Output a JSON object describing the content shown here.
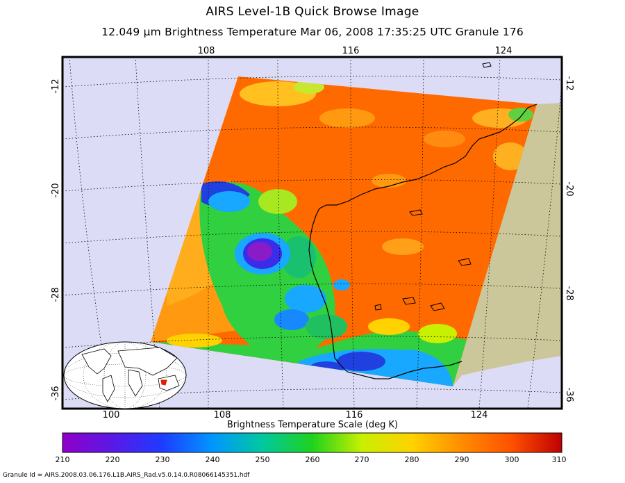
{
  "header": {
    "title": "AIRS Level-1B Quick Browse Image",
    "subtitle": "12.049 µm Brightness Temperature   Mar 06, 2008 17:35:25 UTC  Granule 176"
  },
  "map": {
    "lon_top_labels": [
      "108",
      "116",
      "124"
    ],
    "lon_bottom_labels": [
      "100",
      "108",
      "116",
      "124"
    ],
    "lat_left_labels": [
      "-12",
      "-20",
      "-28",
      "-36"
    ],
    "lat_right_labels": [
      "-12",
      "-20",
      "-28",
      "-36"
    ],
    "colors": {
      "ocean": "#dcdcf6",
      "land": "#cbc79a",
      "graticule": "#000000"
    }
  },
  "colorbar": {
    "title": "Brightness Temperature Scale (deg K)",
    "ticks": [
      "210",
      "220",
      "230",
      "240",
      "250",
      "260",
      "270",
      "280",
      "290",
      "300",
      "310"
    ],
    "range": [
      210,
      310
    ],
    "colors": [
      "#9000c8",
      "#5a18e6",
      "#1e3cff",
      "#0096ff",
      "#00c8a0",
      "#1ed21e",
      "#c8f000",
      "#ffd200",
      "#ff8c00",
      "#ff5000",
      "#be0000"
    ]
  },
  "footer": {
    "granule_id": "Granule Id = AIRS.2008.03.06.176.L1B.AIRS_Rad.v5.0.14.0.R08066145351.hdf"
  }
}
